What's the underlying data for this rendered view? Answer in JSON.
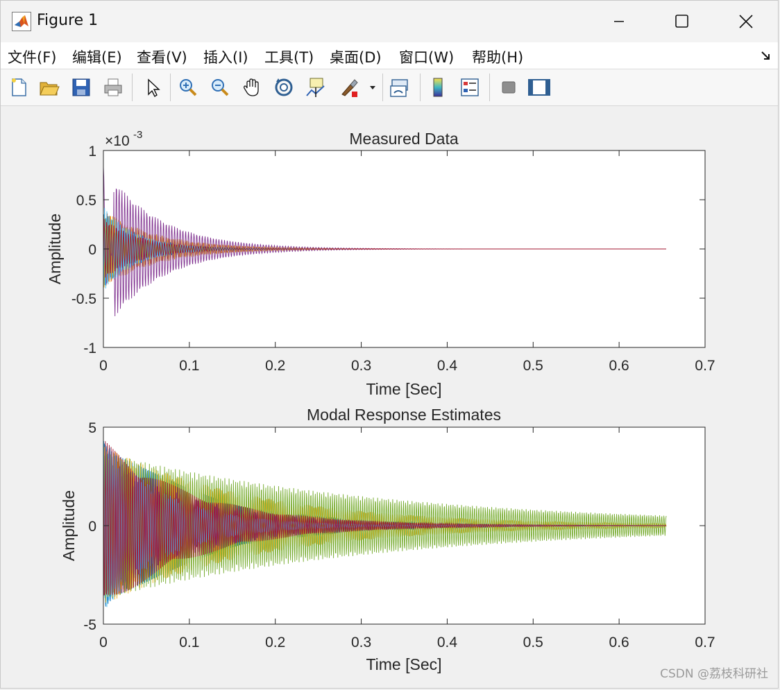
{
  "window": {
    "title": "Figure 1"
  },
  "menubar": {
    "items": [
      {
        "label": "文件(F)"
      },
      {
        "label": "编辑(E)"
      },
      {
        "label": "查看(V)"
      },
      {
        "label": "插入(I)"
      },
      {
        "label": "工具(T)"
      },
      {
        "label": "桌面(D)"
      },
      {
        "label": "窗口(W)"
      },
      {
        "label": "帮助(H)"
      }
    ]
  },
  "toolbar": {
    "buttons": [
      {
        "icon": "new-figure-icon"
      },
      {
        "icon": "open-file-icon"
      },
      {
        "icon": "save-icon"
      },
      {
        "icon": "print-icon"
      },
      {
        "icon": "edit-plot-arrow-icon"
      },
      {
        "icon": "zoom-in-icon"
      },
      {
        "icon": "zoom-out-icon"
      },
      {
        "icon": "pan-hand-icon"
      },
      {
        "icon": "rotate-3d-icon"
      },
      {
        "icon": "data-cursor-icon"
      },
      {
        "icon": "brush-icon"
      },
      {
        "icon": "link-plot-icon"
      },
      {
        "icon": "colorbar-icon"
      },
      {
        "icon": "legend-icon"
      },
      {
        "icon": "hide-plot-tools-icon"
      },
      {
        "icon": "show-plot-tools-icon"
      }
    ]
  },
  "watermark": "CSDN @荔枝科研社",
  "colors": {
    "series": [
      "#0072bd",
      "#d95319",
      "#edb120",
      "#7e2f8e",
      "#77ac30",
      "#4dbeee",
      "#a2142f"
    ]
  },
  "chart_data": [
    {
      "type": "line",
      "title": "Measured Data",
      "xlabel": "Time [Sec]",
      "ylabel": "Amplitude",
      "exponent_label": "×10",
      "exponent_power": "-3",
      "xlim": [
        0,
        0.7
      ],
      "ylim": [
        -1,
        1
      ],
      "xticks": [
        0,
        0.1,
        0.2,
        0.3,
        0.4,
        0.5,
        0.6,
        0.7
      ],
      "xtick_labels": [
        "0",
        "0.1",
        "0.2",
        "0.3",
        "0.4",
        "0.5",
        "0.6",
        "0.7"
      ],
      "yticks": [
        -1,
        -0.5,
        0,
        0.5,
        1
      ],
      "ytick_labels": [
        "-1",
        "-0.5",
        "0",
        "0.5",
        "1"
      ],
      "x_end": 0.655,
      "grid": false,
      "series_count": 7,
      "description_values": {
        "initial_peak": 0.85,
        "initial_trough": -0.65,
        "envelope_at_0.05": 0.12,
        "envelope_at_0.2": 0.03
      }
    },
    {
      "type": "line",
      "title": "Modal Response Estimates",
      "xlabel": "Time [Sec]",
      "ylabel": "Amplitude",
      "xlim": [
        0,
        0.7
      ],
      "ylim": [
        -5,
        5
      ],
      "xticks": [
        0,
        0.1,
        0.2,
        0.3,
        0.4,
        0.5,
        0.6,
        0.7
      ],
      "xtick_labels": [
        "0",
        "0.1",
        "0.2",
        "0.3",
        "0.4",
        "0.5",
        "0.6",
        "0.7"
      ],
      "yticks": [
        -5,
        0,
        5
      ],
      "ytick_labels": [
        "-5",
        "0",
        "5"
      ],
      "x_end": 0.655,
      "grid": false,
      "series_count": 7,
      "description_values": {
        "initial_peak": 4.8,
        "initial_trough": -4.9,
        "envelope_at_0.2": 1.0,
        "envelope_at_0.5": 0.3,
        "envelope_at_0.65": 0.1
      }
    }
  ]
}
